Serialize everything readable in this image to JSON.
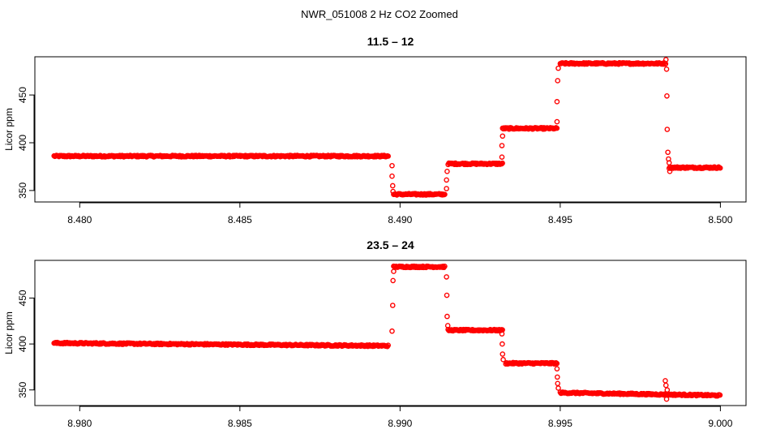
{
  "figure_title": "NWR_051008  2 Hz CO2 Zoomed",
  "chart_data": [
    {
      "type": "scatter",
      "title": "11.5 – 12",
      "xlabel": "",
      "ylabel": "Licor ppm",
      "xlim": [
        8.4786,
        8.5008
      ],
      "ylim": [
        338,
        490
      ],
      "xticks": [
        8.48,
        8.485,
        8.49,
        8.495,
        8.5
      ],
      "xtick_labels": [
        "8.480",
        "8.485",
        "8.490",
        "8.495",
        "8.500"
      ],
      "yticks": [
        350,
        400,
        450
      ],
      "ytick_labels": [
        "350",
        "400",
        "450"
      ],
      "marker": "open-circle",
      "color": "#ff0000",
      "plateaus": [
        {
          "x_start": 8.4792,
          "x_end": 8.48965,
          "y": 386
        },
        {
          "x_start": 8.4898,
          "x_end": 8.4914,
          "y": 346
        },
        {
          "x_start": 8.4915,
          "x_end": 8.4932,
          "y": 378
        },
        {
          "x_start": 8.4932,
          "x_end": 8.4949,
          "y": 415
        },
        {
          "x_start": 8.495,
          "x_end": 8.4983,
          "y": 483
        },
        {
          "x_start": 8.4984,
          "x_end": 8.5,
          "y": 374
        }
      ],
      "transitions": [
        {
          "x": 8.48975,
          "y": 376
        },
        {
          "x": 8.48975,
          "y": 365
        },
        {
          "x": 8.48977,
          "y": 355
        },
        {
          "x": 8.48978,
          "y": 349
        },
        {
          "x": 8.49145,
          "y": 352
        },
        {
          "x": 8.49145,
          "y": 361
        },
        {
          "x": 8.49147,
          "y": 370
        },
        {
          "x": 8.49318,
          "y": 385
        },
        {
          "x": 8.49318,
          "y": 397
        },
        {
          "x": 8.4932,
          "y": 407
        },
        {
          "x": 8.4949,
          "y": 422
        },
        {
          "x": 8.4949,
          "y": 443
        },
        {
          "x": 8.49492,
          "y": 465
        },
        {
          "x": 8.49494,
          "y": 478
        },
        {
          "x": 8.4983,
          "y": 487
        },
        {
          "x": 8.49832,
          "y": 477
        },
        {
          "x": 8.49833,
          "y": 449
        },
        {
          "x": 8.49834,
          "y": 414
        },
        {
          "x": 8.49836,
          "y": 390
        },
        {
          "x": 8.49838,
          "y": 383
        },
        {
          "x": 8.4984,
          "y": 379
        },
        {
          "x": 8.49842,
          "y": 370
        }
      ]
    },
    {
      "type": "scatter",
      "title": "23.5 – 24",
      "xlabel": "",
      "ylabel": "Licor ppm",
      "xlim": [
        8.9786,
        9.0008
      ],
      "ylim": [
        333,
        491
      ],
      "xticks": [
        8.98,
        8.985,
        8.99,
        8.995,
        9.0
      ],
      "xtick_labels": [
        "8.980",
        "8.985",
        "8.990",
        "8.995",
        "9.000"
      ],
      "yticks": [
        350,
        400,
        450
      ],
      "ytick_labels": [
        "350",
        "400",
        "450"
      ],
      "marker": "open-circle",
      "color": "#ff0000",
      "plateaus": [
        {
          "x_start": 8.9792,
          "x_end": 8.98965,
          "y_start": 401,
          "y_end": 398
        },
        {
          "x_start": 8.9898,
          "x_end": 8.9914,
          "y": 484
        },
        {
          "x_start": 8.9915,
          "x_end": 8.9932,
          "y": 415
        },
        {
          "x_start": 8.9933,
          "x_end": 8.9949,
          "y": 379
        },
        {
          "x_start": 8.995,
          "x_end": 9.0,
          "y_start": 347,
          "y_end": 344
        }
      ],
      "transitions": [
        {
          "x": 8.98975,
          "y": 414
        },
        {
          "x": 8.98977,
          "y": 442
        },
        {
          "x": 8.98978,
          "y": 469
        },
        {
          "x": 8.9898,
          "y": 479
        },
        {
          "x": 8.99145,
          "y": 473
        },
        {
          "x": 8.99146,
          "y": 453
        },
        {
          "x": 8.99147,
          "y": 430
        },
        {
          "x": 8.99149,
          "y": 420
        },
        {
          "x": 8.99318,
          "y": 411
        },
        {
          "x": 8.99319,
          "y": 400
        },
        {
          "x": 8.9932,
          "y": 389
        },
        {
          "x": 8.99322,
          "y": 383
        },
        {
          "x": 8.9949,
          "y": 373
        },
        {
          "x": 8.99491,
          "y": 364
        },
        {
          "x": 8.99492,
          "y": 357
        },
        {
          "x": 8.99494,
          "y": 352
        },
        {
          "x": 8.99828,
          "y": 360
        },
        {
          "x": 8.9983,
          "y": 355
        },
        {
          "x": 8.99832,
          "y": 340
        },
        {
          "x": 8.99834,
          "y": 350
        }
      ]
    }
  ]
}
